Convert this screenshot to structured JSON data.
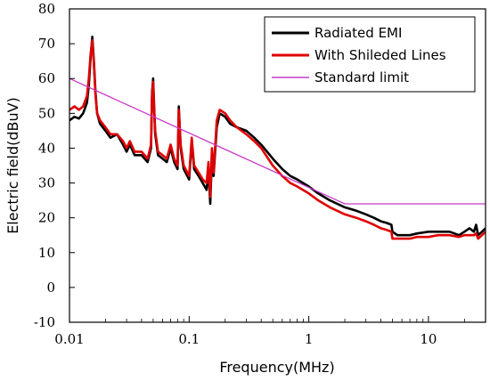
{
  "chart_data": {
    "type": "line",
    "xlabel": "Frequency(MHz)",
    "ylabel": "Electric field(dBuV)",
    "xscale": "log",
    "xlim": [
      0.01,
      30
    ],
    "ylim": [
      -10,
      80
    ],
    "xticks": [
      0.01,
      0.1,
      1,
      10
    ],
    "xtick_labels": [
      "0.01",
      "0.1",
      "1",
      "10"
    ],
    "yticks": [
      -10,
      0,
      10,
      20,
      30,
      40,
      50,
      60,
      70,
      80
    ],
    "ytick_labels": [
      "-10",
      "0",
      "10",
      "20",
      "30",
      "40",
      "50",
      "60",
      "70",
      "80"
    ],
    "grid": false,
    "legend_position": "top-right",
    "series": [
      {
        "name": "Radiated EMI",
        "color": "#000000",
        "x": [
          0.01,
          0.011,
          0.012,
          0.013,
          0.014,
          0.0145,
          0.015,
          0.0155,
          0.016,
          0.0165,
          0.017,
          0.018,
          0.02,
          0.022,
          0.025,
          0.028,
          0.03,
          0.032,
          0.035,
          0.04,
          0.045,
          0.048,
          0.049,
          0.05,
          0.051,
          0.052,
          0.055,
          0.06,
          0.065,
          0.07,
          0.075,
          0.08,
          0.082,
          0.085,
          0.09,
          0.1,
          0.105,
          0.11,
          0.12,
          0.13,
          0.14,
          0.145,
          0.15,
          0.155,
          0.16,
          0.17,
          0.18,
          0.2,
          0.22,
          0.25,
          0.3,
          0.35,
          0.4,
          0.5,
          0.6,
          0.7,
          0.8,
          1.0,
          1.2,
          1.5,
          2.0,
          2.5,
          3.0,
          3.5,
          4.0,
          4.5,
          4.9,
          5.0,
          5.5,
          6.0,
          7.0,
          8.0,
          10.0,
          12.0,
          15.0,
          18.0,
          20.0,
          22.0,
          24.0,
          25.0,
          26.0,
          28.0,
          30.0
        ],
        "y": [
          48,
          49,
          48.5,
          50,
          53,
          58,
          66,
          72,
          65,
          56,
          50,
          47,
          45,
          43,
          44,
          41,
          39,
          41,
          38,
          38,
          36,
          40,
          56,
          60,
          52,
          44,
          38,
          37,
          36,
          40,
          36,
          34,
          52,
          40,
          34,
          31,
          42,
          34,
          32,
          30,
          28,
          34,
          24,
          38,
          32,
          46,
          50,
          49,
          47,
          46,
          45,
          43,
          41,
          37,
          34,
          32,
          31,
          29,
          27,
          25,
          23,
          22,
          21,
          20,
          19,
          18.5,
          18,
          16,
          15,
          15,
          15,
          15.5,
          16,
          16,
          16,
          15,
          16,
          17,
          16,
          18,
          15,
          16,
          17
        ]
      },
      {
        "name": "With Shileded Lines",
        "color": "#e00000",
        "x": [
          0.01,
          0.011,
          0.012,
          0.013,
          0.014,
          0.0145,
          0.015,
          0.0155,
          0.016,
          0.0165,
          0.017,
          0.018,
          0.02,
          0.022,
          0.025,
          0.028,
          0.03,
          0.032,
          0.035,
          0.04,
          0.045,
          0.048,
          0.049,
          0.05,
          0.051,
          0.052,
          0.055,
          0.06,
          0.065,
          0.07,
          0.075,
          0.08,
          0.082,
          0.085,
          0.09,
          0.1,
          0.105,
          0.11,
          0.12,
          0.13,
          0.14,
          0.145,
          0.15,
          0.155,
          0.16,
          0.17,
          0.18,
          0.2,
          0.22,
          0.25,
          0.3,
          0.35,
          0.4,
          0.5,
          0.6,
          0.7,
          0.8,
          1.0,
          1.2,
          1.5,
          2.0,
          2.5,
          3.0,
          3.5,
          4.0,
          4.5,
          4.9,
          5.0,
          5.5,
          6.0,
          7.0,
          8.0,
          10.0,
          12.0,
          15.0,
          18.0,
          20.0,
          22.0,
          24.0,
          25.0,
          26.0,
          28.0,
          30.0
        ],
        "y": [
          51,
          52,
          51,
          52,
          55,
          60,
          67,
          71,
          64,
          55,
          50,
          48,
          46,
          44,
          44,
          42,
          40,
          42,
          39,
          39,
          37,
          41,
          55,
          59,
          51,
          45,
          39,
          38,
          37,
          41,
          37,
          35,
          51,
          41,
          35,
          32,
          43,
          35,
          33,
          31,
          30,
          36,
          26,
          40,
          33,
          48,
          51,
          50,
          48,
          46,
          44,
          42,
          40,
          35,
          32,
          30,
          29,
          27,
          25,
          23,
          21,
          20,
          19,
          18,
          17,
          16.5,
          16,
          14,
          14,
          14,
          14,
          14.5,
          14.5,
          15,
          15,
          14.5,
          15,
          15,
          15,
          15.5,
          14,
          15,
          16
        ]
      },
      {
        "name": "Standard limit",
        "color": "#c83cc8",
        "x": [
          0.01,
          2.0,
          30.0
        ],
        "y": [
          60,
          24,
          24
        ]
      }
    ]
  }
}
